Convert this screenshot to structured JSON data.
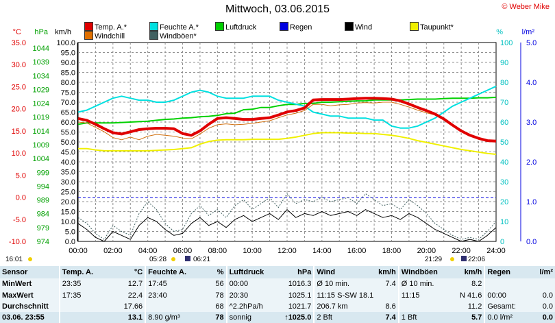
{
  "title": "Mittwoch, 03.06.2015",
  "credit": "© Weber Mike",
  "legend": [
    {
      "label": "Temp. A.*",
      "color": "#e00000"
    },
    {
      "label": "Feuchte A.*",
      "color": "#00e0e0"
    },
    {
      "label": "Luftdruck",
      "color": "#00d000"
    },
    {
      "label": "Regen",
      "color": "#0000e0"
    },
    {
      "label": "Wind",
      "color": "#000000"
    },
    {
      "label": "Taupunkt*",
      "color": "#f0f000"
    },
    {
      "label": "Windchill",
      "color": "#e07000"
    },
    {
      "label": "Windböen*",
      "color": "#406060"
    }
  ],
  "chart_data": {
    "type": "line",
    "title": "Mittwoch, 03.06.2015",
    "x_ticks": [
      "00:00",
      "02:00",
      "04:00",
      "06:00",
      "08:00",
      "10:00",
      "12:00",
      "14:00",
      "16:00",
      "18:00",
      "20:00",
      "22:00",
      "24:00"
    ],
    "axes": {
      "temp_unit": "°C",
      "pressure_unit": "hPa",
      "wind_unit": "km/h",
      "humidity_unit": "%",
      "rain_unit": "l/m²",
      "temp_ticks": [
        "35.0",
        "30.0",
        "25.0",
        "20.0",
        "15.0",
        "10.0",
        "5.0",
        "0.0",
        "-5.0",
        "-10.0"
      ],
      "pressure_ticks": [
        "1044",
        "1039",
        "1034",
        "1029",
        "1024",
        "1019",
        "1014",
        "1009",
        "1004",
        "999",
        "994",
        "989",
        "984",
        "979",
        "974"
      ],
      "wind_ticks": [
        "100.0",
        "95.0",
        "90.0",
        "85.0",
        "80.0",
        "75.0",
        "70.0",
        "65.0",
        "60.0",
        "55.0",
        "50.0",
        "45.0",
        "40.0",
        "35.0",
        "30.0",
        "25.0",
        "20.0",
        "15.0",
        "10.0",
        "5.0",
        "0.0"
      ],
      "humidity_ticks": [
        "100",
        "90",
        "80",
        "70",
        "60",
        "50",
        "40",
        "30",
        "20",
        "10",
        "0"
      ],
      "rain_ticks": [
        "5.0",
        "4.0",
        "3.0",
        "2.0",
        "1.0",
        "0.0"
      ],
      "temp_range": [
        -10,
        35
      ],
      "wind_range": [
        0,
        100
      ],
      "humidity_range": [
        0,
        100
      ],
      "rain_range": [
        0,
        5
      ],
      "grid": true
    },
    "hours": [
      0,
      0.5,
      1,
      1.5,
      2,
      2.5,
      3,
      3.5,
      4,
      4.5,
      5,
      5.5,
      6,
      6.5,
      7,
      7.5,
      8,
      8.5,
      9,
      9.5,
      10,
      10.5,
      11,
      11.5,
      12,
      12.5,
      13,
      13.5,
      14,
      14.5,
      15,
      15.5,
      16,
      16.5,
      17,
      17.5,
      18,
      18.5,
      19,
      19.5,
      20,
      20.5,
      21,
      21.5,
      22,
      22.5,
      23,
      23.5,
      24
    ],
    "series": [
      {
        "name": "Temp. A.*",
        "key": "temp",
        "axis": "temp",
        "color": "#e00000",
        "width": 4,
        "values": [
          17.8,
          17.4,
          16.5,
          15.5,
          14.6,
          14.3,
          14.8,
          15.3,
          15.5,
          15.6,
          15.6,
          15.5,
          14.4,
          14.0,
          15.0,
          16.5,
          17.8,
          18.0,
          17.8,
          17.6,
          17.6,
          17.8,
          18.0,
          18.6,
          19.3,
          19.6,
          20.2,
          22.0,
          22.1,
          22.1,
          22.1,
          22.2,
          22.3,
          22.4,
          22.4,
          22.3,
          22.2,
          21.8,
          21.1,
          20.3,
          19.6,
          18.8,
          17.7,
          16.3,
          15.0,
          14.0,
          13.3,
          12.8,
          12.7
        ]
      },
      {
        "name": "Windchill",
        "key": "windchill",
        "axis": "temp",
        "color": "#d07010",
        "width": 1,
        "values": [
          17.0,
          16.8,
          15.8,
          14.8,
          13.5,
          13.0,
          13.6,
          13.0,
          13.8,
          14.2,
          14.0,
          13.8,
          13.4,
          13.2,
          14.3,
          15.6,
          16.4,
          16.6,
          16.4,
          16.5,
          16.7,
          17.0,
          17.3,
          18.0,
          18.6,
          19.0,
          19.6,
          21.0,
          21.0,
          20.7,
          20.9,
          21.0,
          21.3,
          21.4,
          21.3,
          21.5,
          21.5,
          21.0,
          20.4,
          19.7,
          19.1,
          18.6,
          17.7,
          16.3,
          15.0,
          14.0,
          13.3,
          12.8,
          12.7
        ]
      },
      {
        "name": "Feuchte A.*",
        "key": "humidity",
        "axis": "humidity",
        "color": "#00e0e0",
        "width": 2,
        "values": [
          65,
          66,
          68,
          70,
          72,
          73,
          72,
          71,
          71,
          70,
          70,
          71,
          73,
          75,
          76,
          75,
          73,
          72,
          72,
          72,
          73,
          73,
          73,
          71,
          70,
          69,
          68,
          65,
          64,
          63,
          63,
          62,
          62,
          62,
          61,
          61,
          58,
          57,
          57,
          58,
          60,
          62,
          65,
          68,
          70,
          72,
          74,
          76,
          78
        ]
      },
      {
        "name": "Luftdruck",
        "key": "pressure",
        "axis": "temp",
        "color": "#00d000",
        "width": 2,
        "values": [
          16.5,
          16.8,
          16.8,
          16.8,
          16.8,
          16.9,
          17.0,
          17.1,
          17.2,
          17.4,
          17.6,
          17.7,
          17.9,
          18.0,
          18.2,
          18.3,
          18.5,
          18.9,
          19.0,
          19.8,
          19.9,
          20.3,
          20.3,
          20.7,
          21.0,
          21.0,
          21.2,
          21.2,
          21.5,
          21.5,
          21.6,
          21.7,
          21.8,
          21.8,
          22.0,
          22.0,
          22.0,
          22.0,
          22.1,
          22.2,
          22.2,
          22.2,
          22.3,
          22.4,
          22.4,
          22.4,
          22.5,
          22.5,
          22.6
        ]
      },
      {
        "name": "Taupunkt*",
        "key": "dewpoint",
        "axis": "temp",
        "color": "#f0f000",
        "width": 2,
        "values": [
          11.0,
          11.0,
          10.7,
          10.5,
          10.5,
          10.5,
          10.5,
          10.5,
          10.5,
          10.6,
          10.7,
          10.8,
          11.0,
          11.2,
          12.0,
          12.6,
          12.9,
          13.0,
          13.0,
          13.0,
          13.1,
          13.1,
          13.1,
          13.1,
          13.3,
          13.6,
          14.0,
          14.4,
          14.6,
          14.6,
          14.6,
          14.5,
          14.5,
          14.4,
          14.4,
          14.2,
          14.0,
          13.7,
          13.3,
          12.8,
          12.4,
          12.0,
          11.6,
          11.2,
          10.8,
          10.5,
          10.2,
          9.9,
          9.7
        ]
      },
      {
        "name": "Wind",
        "key": "wind",
        "axis": "wind",
        "color": "#000000",
        "width": 1,
        "values": [
          9,
          6,
          2,
          0,
          5,
          3,
          1,
          8,
          12,
          10,
          6,
          3,
          4,
          9,
          12,
          8,
          10,
          7,
          11,
          13,
          10,
          12,
          14,
          11,
          16,
          12,
          14,
          13,
          15,
          13,
          14,
          15,
          13,
          16,
          14,
          12,
          13,
          11,
          14,
          12,
          9,
          6,
          4,
          2,
          0,
          1,
          0,
          3,
          7
        ]
      },
      {
        "name": "Windböen*",
        "key": "gusts",
        "axis": "wind",
        "color": "#406060",
        "width": 1,
        "dashed": true,
        "values": [
          12,
          9,
          4,
          1,
          8,
          5,
          3,
          14,
          20,
          16,
          9,
          5,
          6,
          14,
          18,
          13,
          16,
          12,
          18,
          21,
          16,
          19,
          22,
          17,
          24,
          19,
          21,
          20,
          22,
          20,
          21,
          22,
          19,
          24,
          21,
          18,
          19,
          16,
          21,
          18,
          14,
          9,
          6,
          3,
          1,
          2,
          1,
          5,
          10
        ]
      }
    ],
    "rain_line_value": 1.1
  },
  "markers": {
    "sunrise_left": "16:01",
    "sunrise": "05:28",
    "moonset": "06:21",
    "sunset": "21:29",
    "moonrise": "22:06"
  },
  "stats": {
    "headers": [
      "Sensor",
      "Temp. A.",
      "°C",
      "Feuchte A.",
      "%",
      "Luftdruck",
      "hPa",
      "Wind",
      "km/h",
      "Windböen",
      "km/h",
      "Regen",
      "l/m²"
    ],
    "rows": [
      {
        "label": "MinWert",
        "cells": [
          "23:35",
          "12.7",
          "17:45",
          "56",
          "00:00",
          "1016.3",
          "Ø 10 min.",
          "7.4",
          "Ø 10 min.",
          "8.2",
          "",
          ""
        ]
      },
      {
        "label": "MaxWert",
        "cells": [
          "17:35",
          "22.4",
          "23:40",
          "78",
          "20:30",
          "1025.1",
          "11:15    S-SW 18.1",
          "",
          "11:15",
          "N 41.6",
          "00:00",
          "0.0"
        ]
      },
      {
        "label": "Durchschnitt",
        "cells": [
          "",
          "17.66",
          "",
          "68",
          "^2.2hPa/h",
          "1021.7",
          "206.7 km",
          "8.6",
          "",
          "11.2",
          "Gesamt:",
          "0.0"
        ]
      },
      {
        "label": "03.06. 23:55",
        "cells": [
          "",
          "13.1",
          "8.90 g/m³",
          "78",
          "sonnig",
          "↑1025.0",
          "2 Bft",
          "7.4",
          "1 Bft",
          "5.7",
          "0.0 l/m²",
          "0.0"
        ]
      }
    ]
  }
}
